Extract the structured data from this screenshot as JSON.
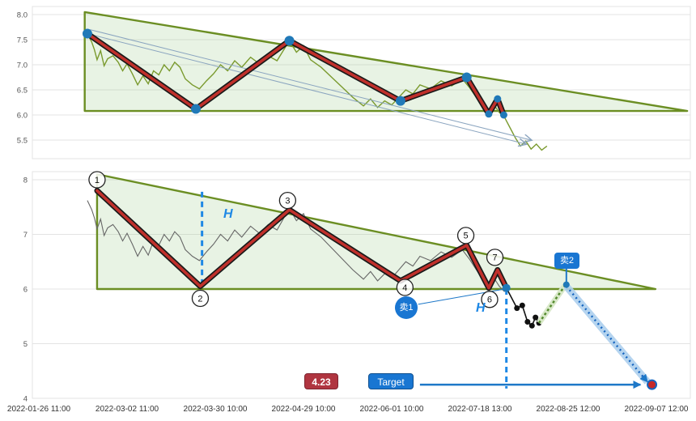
{
  "colors": {
    "triangle_stroke": "#6b8e23",
    "triangle_fill": "rgba(150,200,130,0.22)",
    "zigzag_red": "#c0302b",
    "zigzag_outline": "#1a1a1a",
    "pivot_dot": "#2079b8",
    "price_line_top": "#7a9a2e",
    "price_line_bottom": "#666666",
    "dashed_blue": "#1e88e5",
    "arrow_blue": "#1e78c8",
    "trend_arrow": "#8aa4bf",
    "grid": "#e3e3e3",
    "green_dotted": "#558b2f",
    "green_dotted_band": "#d8e8c8",
    "projection_band": "#aed0ee",
    "projection_line": "#1565c0",
    "black_line": "#111111",
    "target_point_fill": "#c62828"
  },
  "x_axis": {
    "labels": [
      "2022-01-26 11:00",
      "2022-03-02 11:00",
      "2022-03-30 10:00",
      "2022-04-29 10:00",
      "2022-06-01 10:00",
      "2022-07-18 13:00",
      "2022-08-25 12:00",
      "2022-09-07 12:00"
    ]
  },
  "annotations": {
    "h_label": "H",
    "sell1": "卖1",
    "sell2": "卖2",
    "price_target": "4.23",
    "target_label": "Target"
  },
  "chart_data": [
    {
      "id": "price-chart",
      "type": "line",
      "x_unit": "tick index into x_axis.labels (even category spacing)",
      "yticks": [
        "8.0",
        "7.5",
        "7.0",
        "6.5",
        "6.0",
        "5.5"
      ],
      "ytick_values": [
        8,
        7.5,
        7,
        6.5,
        6,
        5.5
      ],
      "ylim": [
        5.15,
        8.16
      ],
      "triangle": {
        "x_left": 0.52,
        "v_top": 8.05,
        "x_right": 7.35,
        "v_bottom": 6.08
      },
      "price_series": [
        [
          0.55,
          7.62
        ],
        [
          0.6,
          7.45
        ],
        [
          0.63,
          7.3
        ],
        [
          0.66,
          7.1
        ],
        [
          0.7,
          7.28
        ],
        [
          0.74,
          6.98
        ],
        [
          0.78,
          7.12
        ],
        [
          0.84,
          7.18
        ],
        [
          0.9,
          7.05
        ],
        [
          0.95,
          6.88
        ],
        [
          1.0,
          7.02
        ],
        [
          1.06,
          6.82
        ],
        [
          1.12,
          6.6
        ],
        [
          1.18,
          6.78
        ],
        [
          1.24,
          6.62
        ],
        [
          1.3,
          6.88
        ],
        [
          1.36,
          6.8
        ],
        [
          1.42,
          7.0
        ],
        [
          1.48,
          6.88
        ],
        [
          1.54,
          7.05
        ],
        [
          1.6,
          6.95
        ],
        [
          1.66,
          6.72
        ],
        [
          1.74,
          6.6
        ],
        [
          1.82,
          6.52
        ],
        [
          1.9,
          6.68
        ],
        [
          1.98,
          6.82
        ],
        [
          2.06,
          7.0
        ],
        [
          2.14,
          6.88
        ],
        [
          2.22,
          7.08
        ],
        [
          2.3,
          6.95
        ],
        [
          2.4,
          7.15
        ],
        [
          2.5,
          7.02
        ],
        [
          2.6,
          7.18
        ],
        [
          2.7,
          7.08
        ],
        [
          2.84,
          7.48
        ],
        [
          2.92,
          7.25
        ],
        [
          3.0,
          7.38
        ],
        [
          3.08,
          7.1
        ],
        [
          3.2,
          6.95
        ],
        [
          3.32,
          6.75
        ],
        [
          3.44,
          6.55
        ],
        [
          3.56,
          6.35
        ],
        [
          3.68,
          6.18
        ],
        [
          3.76,
          6.32
        ],
        [
          3.84,
          6.15
        ],
        [
          3.92,
          6.28
        ],
        [
          4.0,
          6.2
        ],
        [
          4.08,
          6.35
        ],
        [
          4.16,
          6.5
        ],
        [
          4.24,
          6.42
        ],
        [
          4.32,
          6.6
        ],
        [
          4.44,
          6.52
        ],
        [
          4.56,
          6.68
        ],
        [
          4.68,
          6.58
        ],
        [
          4.8,
          6.72
        ],
        [
          4.88,
          6.55
        ],
        [
          4.96,
          6.35
        ],
        [
          5.04,
          6.15
        ],
        [
          5.1,
          6.0
        ],
        [
          5.16,
          6.2
        ],
        [
          5.22,
          6.05
        ],
        [
          5.28,
          5.95
        ],
        [
          5.34,
          5.75
        ],
        [
          5.4,
          5.55
        ],
        [
          5.46,
          5.38
        ],
        [
          5.52,
          5.48
        ],
        [
          5.58,
          5.32
        ],
        [
          5.64,
          5.42
        ],
        [
          5.7,
          5.3
        ],
        [
          5.76,
          5.38
        ]
      ],
      "zigzag": [
        [
          0.55,
          7.62
        ],
        [
          1.78,
          6.12
        ],
        [
          2.84,
          7.48
        ],
        [
          4.1,
          6.28
        ],
        [
          4.85,
          6.75
        ],
        [
          5.1,
          6.02
        ],
        [
          5.2,
          6.32
        ],
        [
          5.27,
          6.0
        ]
      ],
      "pivot_dots": true,
      "trend_arrows": [
        [
          0.58,
          7.7,
          5.58,
          5.5
        ],
        [
          0.55,
          7.62,
          5.52,
          5.42
        ]
      ]
    },
    {
      "id": "wave-chart",
      "type": "line",
      "x_unit": "tick index into x_axis.labels (even category spacing)",
      "yticks": [
        "8",
        "7",
        "6",
        "5",
        "4"
      ],
      "ytick_values": [
        8,
        7,
        6,
        5,
        4
      ],
      "ylim": [
        4,
        8.15
      ],
      "triangle": {
        "x_left": 0.66,
        "v_top": 8.1,
        "x_right": 6.99,
        "v_bottom": 6.0
      },
      "price_end_x": 5.28,
      "zigzag": [
        [
          0.66,
          7.8
        ],
        [
          1.83,
          6.05
        ],
        [
          2.84,
          7.45
        ],
        [
          4.1,
          6.15
        ],
        [
          4.85,
          6.8
        ],
        [
          5.1,
          6.02
        ],
        [
          5.2,
          6.35
        ],
        [
          5.3,
          6.02
        ]
      ],
      "wave_labels": [
        {
          "n": "1",
          "x": 0.66,
          "v": 8.0
        },
        {
          "n": "2",
          "x": 1.83,
          "v": 5.83
        },
        {
          "n": "3",
          "x": 2.82,
          "v": 7.62
        },
        {
          "n": "4",
          "x": 4.15,
          "v": 6.03
        },
        {
          "n": "5",
          "x": 4.84,
          "v": 6.98
        },
        {
          "n": "6",
          "x": 5.11,
          "v": 5.81
        },
        {
          "n": "7",
          "x": 5.17,
          "v": 6.58
        }
      ],
      "dashed_verticals": [
        {
          "x": 1.85,
          "v1": 7.78,
          "v2": 6.05
        },
        {
          "x": 5.3,
          "v1": 6.0,
          "v2": 4.18
        }
      ],
      "post_break": {
        "line": [
          [
            5.3,
            6.02
          ],
          [
            5.42,
            5.65
          ],
          [
            5.48,
            5.7
          ],
          [
            5.54,
            5.4
          ],
          [
            5.59,
            5.33
          ],
          [
            5.63,
            5.48
          ],
          [
            5.67,
            5.38
          ]
        ],
        "dots": [
          [
            5.42,
            5.65
          ],
          [
            5.48,
            5.7
          ],
          [
            5.54,
            5.4
          ],
          [
            5.59,
            5.33
          ],
          [
            5.63,
            5.48
          ],
          [
            5.67,
            5.38
          ]
        ]
      },
      "green_dotted": [
        [
          5.67,
          5.38
        ],
        [
          5.98,
          6.1
        ]
      ],
      "projection_arrow": [
        [
          5.98,
          6.05
        ],
        [
          6.9,
          4.3
        ]
      ],
      "target_arrow": {
        "v": 4.25,
        "x1": 4.32,
        "x2": 6.82
      },
      "sell1_line": [
        [
          4.3,
          5.72
        ],
        [
          5.28,
          6.0
        ]
      ],
      "sell2_stem": {
        "x": 5.98,
        "v1": 6.42,
        "v2": 6.08
      },
      "breakdown_dot": [
        5.3,
        6.02
      ],
      "target_point": [
        6.95,
        4.25
      ],
      "target_value": 4.23
    }
  ]
}
